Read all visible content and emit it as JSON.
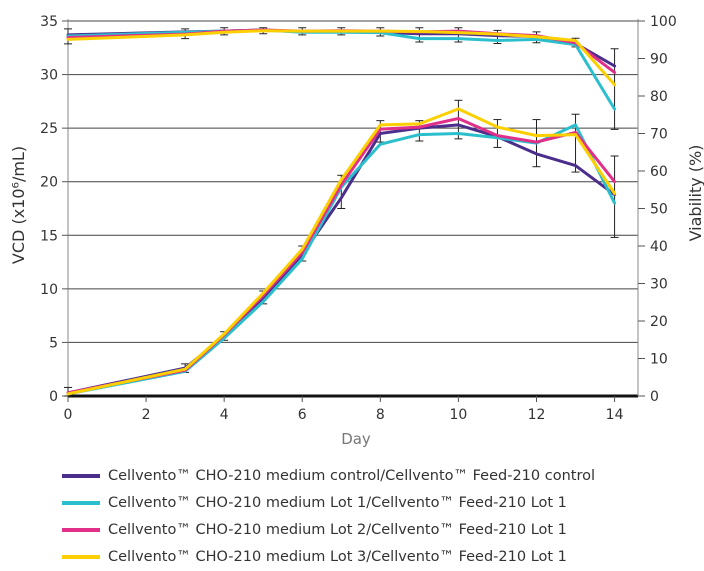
{
  "chart_data": {
    "type": "line",
    "xlabel": "Day",
    "ylabel_left": "VCD (x10⁶/mL)",
    "ylabel_right": "Viability (%)",
    "x_ticks": [
      0,
      2,
      4,
      6,
      8,
      10,
      12,
      14
    ],
    "y_left_ticks": [
      0,
      5,
      10,
      15,
      20,
      25,
      30,
      35
    ],
    "y_right_ticks": [
      0,
      10,
      20,
      30,
      40,
      50,
      60,
      70,
      80,
      90,
      100
    ],
    "xlim": [
      0,
      14.6
    ],
    "ylim_left": [
      0,
      35
    ],
    "ylim_right": [
      0,
      100
    ],
    "grid": "horizontal",
    "legend_position": "bottom",
    "x": [
      0,
      3,
      4,
      5,
      6,
      7,
      8,
      9,
      10,
      11,
      12,
      13,
      14
    ],
    "series": [
      {
        "name": "Cellvento™ CHO-210 medium control/Cellvento™ Feed-210 control",
        "color": "#4b2e8c",
        "vcd": [
          0.3,
          2.6,
          5.6,
          9.0,
          13.2,
          18.5,
          24.5,
          25.0,
          25.3,
          24.2,
          22.6,
          21.5,
          18.8
        ],
        "viability": [
          96.3,
          97.1,
          97.3,
          97.6,
          97.1,
          97.1,
          97.0,
          96.6,
          96.6,
          96.1,
          95.9,
          94.0,
          88.0
        ]
      },
      {
        "name": "Cellvento™ CHO-210 medium Lot 1/Cellvento™ Feed-210 Lot 1",
        "color": "#2bbfce",
        "vcd": [
          0.2,
          2.3,
          5.4,
          8.8,
          12.8,
          19.5,
          23.5,
          24.4,
          24.5,
          24.1,
          23.6,
          25.3,
          18.0
        ],
        "viability": [
          96.0,
          97.0,
          97.3,
          97.6,
          97.0,
          97.0,
          96.9,
          95.3,
          95.3,
          94.8,
          95.1,
          93.7,
          76.5
        ]
      },
      {
        "name": "Cellvento™ CHO-210 medium Lot 2/Cellvento™ Feed-210 Lot 1",
        "color": "#e0308a",
        "vcd": [
          0.3,
          2.4,
          5.7,
          9.4,
          13.4,
          19.7,
          24.9,
          25.1,
          25.9,
          24.3,
          23.7,
          24.6,
          20.0
        ],
        "viability": [
          95.6,
          96.5,
          97.3,
          97.6,
          97.3,
          97.4,
          97.3,
          97.1,
          97.3,
          96.6,
          96.1,
          94.2,
          86.3
        ]
      },
      {
        "name": "Cellvento™ CHO-210 medium Lot 3/Cellvento™ Feed-210 Lot 1",
        "color": "#fcd000",
        "vcd": [
          0.2,
          2.5,
          5.8,
          9.6,
          13.7,
          20.2,
          25.3,
          25.4,
          26.8,
          25.1,
          24.3,
          24.4,
          18.9
        ],
        "viability": [
          95.1,
          96.3,
          97.0,
          97.4,
          97.3,
          97.3,
          97.3,
          97.2,
          96.9,
          96.5,
          95.8,
          94.8,
          83.0
        ]
      }
    ],
    "error_bars_vcd": {
      "x": [
        0,
        3,
        4,
        5,
        6,
        7,
        8,
        9,
        10,
        11,
        12,
        13,
        14
      ],
      "low": [
        0.0,
        2.2,
        5.2,
        8.6,
        12.6,
        17.5,
        23.7,
        23.8,
        24.0,
        23.2,
        21.4,
        20.9,
        14.8
      ],
      "high": [
        0.8,
        3.0,
        6.0,
        9.8,
        14.0,
        20.6,
        25.7,
        25.7,
        27.6,
        25.8,
        25.8,
        26.3,
        22.4
      ]
    },
    "error_bars_viability": {
      "x": [
        0,
        3,
        4,
        5,
        6,
        7,
        8,
        9,
        10,
        11,
        12,
        13,
        14
      ],
      "low": [
        93.9,
        95.3,
        96.3,
        96.6,
        96.3,
        96.3,
        96.0,
        94.4,
        94.4,
        94.0,
        94.2,
        93.1,
        71.1
      ],
      "high": [
        97.9,
        97.9,
        98.2,
        98.2,
        98.2,
        98.2,
        98.2,
        98.2,
        98.2,
        97.5,
        97.1,
        95.4,
        92.6
      ]
    }
  }
}
